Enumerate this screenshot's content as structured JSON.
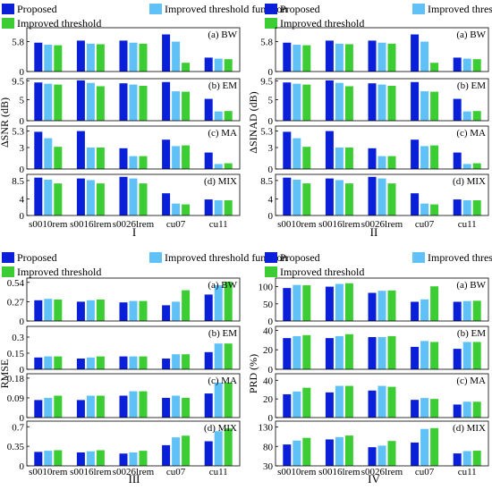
{
  "legend_labels": [
    "Proposed",
    "Improved threshold function",
    "Improved threshold"
  ],
  "colors": {
    "proposed": "#0a1fd8",
    "function": "#5fc1f5",
    "threshold": "#3ccd35",
    "cyan_box": "#2ee8e8",
    "frame": "#000000"
  },
  "chart_data": [
    {
      "type": "bar",
      "title": "I",
      "ylabel": "ΔSNR (dB)",
      "categories": [
        "s0010rem",
        "s0016lrem",
        "s0026lrem",
        "cu07",
        "cu11"
      ],
      "series_names": [
        "Proposed",
        "Improved threshold function",
        "Improved threshold"
      ],
      "panels": [
        {
          "label": "(a) BW",
          "ylim": [
            0,
            8.5
          ],
          "yticks": [
            "0",
            "5.8"
          ],
          "tick_values": [
            0,
            5.8
          ],
          "values": [
            [
              5.6,
              5.2,
              5.1
            ],
            [
              6.0,
              5.4,
              5.3
            ],
            [
              6.0,
              5.6,
              5.4
            ],
            [
              7.2,
              5.8,
              1.7
            ],
            [
              2.7,
              2.5,
              2.4
            ]
          ]
        },
        {
          "label": "(b) EM",
          "ylim": [
            0,
            10
          ],
          "yticks": [
            "0",
            "5",
            "9.5"
          ],
          "tick_values": [
            0,
            5,
            9.5
          ],
          "values": [
            [
              9.1,
              8.8,
              8.6
            ],
            [
              9.6,
              9.0,
              8.2
            ],
            [
              8.9,
              8.6,
              8.3
            ],
            [
              9.2,
              7.0,
              6.9
            ],
            [
              5.2,
              2.2,
              2.3
            ]
          ]
        },
        {
          "label": "(c) MA",
          "ylim": [
            0,
            6
          ],
          "yticks": [
            "0",
            "3",
            "5.3"
          ],
          "tick_values": [
            0,
            3,
            5.3
          ],
          "values": [
            [
              5.2,
              4.3,
              3.1
            ],
            [
              5.3,
              3.0,
              3.0
            ],
            [
              2.9,
              1.8,
              1.8
            ],
            [
              4.1,
              3.2,
              3.3
            ],
            [
              2.3,
              0.7,
              0.8
            ]
          ]
        },
        {
          "label": "(d) MIX",
          "ylim": [
            0,
            10
          ],
          "yticks": [
            "0",
            "4",
            "8.5"
          ],
          "tick_values": [
            0,
            4,
            8.5
          ],
          "values": [
            [
              9.2,
              8.7,
              7.8
            ],
            [
              9.0,
              8.6,
              7.8
            ],
            [
              9.4,
              9.0,
              7.8
            ],
            [
              5.4,
              2.9,
              2.7
            ],
            [
              3.9,
              3.7,
              3.7
            ]
          ]
        }
      ],
      "xticks": [
        "s0010rem",
        "s0016lrem",
        "s0026lrem",
        "cu07",
        "cu11"
      ]
    },
    {
      "type": "bar",
      "title": "II",
      "ylabel": "ΔSINAD (dB)",
      "categories": [
        "s0010rem",
        "s0016lrem",
        "s0026lrem",
        "cu07",
        "cu11"
      ],
      "series_names": [
        "Proposed",
        "Improved threshold function",
        "Improved threshold"
      ],
      "panels": [
        {
          "label": "(a) BW",
          "ylim": [
            0,
            8.5
          ],
          "yticks": [
            "0",
            "5.8"
          ],
          "tick_values": [
            0,
            5.8
          ],
          "values": [
            [
              5.6,
              5.2,
              5.1
            ],
            [
              6.0,
              5.4,
              5.3
            ],
            [
              6.0,
              5.6,
              5.4
            ],
            [
              7.2,
              5.8,
              1.7
            ],
            [
              2.7,
              2.5,
              2.4
            ]
          ]
        },
        {
          "label": "(b) EM",
          "ylim": [
            0,
            10
          ],
          "yticks": [
            "0",
            "5",
            "9.5"
          ],
          "tick_values": [
            0,
            5,
            9.5
          ],
          "values": [
            [
              9.1,
              8.8,
              8.6
            ],
            [
              9.6,
              9.0,
              8.2
            ],
            [
              8.9,
              8.6,
              8.3
            ],
            [
              9.2,
              7.0,
              6.9
            ],
            [
              5.2,
              2.2,
              2.3
            ]
          ]
        },
        {
          "label": "(c) MA",
          "ylim": [
            0,
            6
          ],
          "yticks": [
            "0",
            "3",
            "5.3"
          ],
          "tick_values": [
            0,
            3,
            5.3
          ],
          "values": [
            [
              5.2,
              4.3,
              3.1
            ],
            [
              5.3,
              3.0,
              3.0
            ],
            [
              2.9,
              1.8,
              1.8
            ],
            [
              4.1,
              3.2,
              3.3
            ],
            [
              2.3,
              0.7,
              0.8
            ]
          ]
        },
        {
          "label": "(d) MIX",
          "ylim": [
            0,
            10
          ],
          "yticks": [
            "0",
            "4",
            "8.5"
          ],
          "tick_values": [
            0,
            4,
            8.5
          ],
          "values": [
            [
              9.2,
              8.7,
              7.8
            ],
            [
              9.0,
              8.6,
              7.8
            ],
            [
              9.4,
              9.0,
              7.8
            ],
            [
              5.4,
              2.9,
              2.7
            ],
            [
              3.9,
              3.7,
              3.7
            ]
          ]
        }
      ],
      "xticks": [
        "s0010rem",
        "s0016lrem",
        "s0026lrem",
        "cu07",
        "cu11"
      ]
    },
    {
      "type": "bar",
      "title": "III",
      "ylabel": "RMSE",
      "categories": [
        "s0010rem",
        "s0016lrem",
        "s0026lrem",
        "cu07",
        "cu11"
      ],
      "series_names": [
        "Proposed",
        "Improved threshold function",
        "Improved threshold"
      ],
      "panels": [
        {
          "label": "(a) BW",
          "ylim": [
            0,
            0.6
          ],
          "yticks": [
            "0",
            "0.27",
            "0.54"
          ],
          "tick_values": [
            0,
            0.27,
            0.54
          ],
          "values": [
            [
              0.29,
              0.31,
              0.3
            ],
            [
              0.27,
              0.29,
              0.3
            ],
            [
              0.26,
              0.28,
              0.28
            ],
            [
              0.22,
              0.27,
              0.43
            ],
            [
              0.37,
              0.5,
              0.55
            ]
          ]
        },
        {
          "label": "(b) EM",
          "ylim": [
            0,
            0.4
          ],
          "yticks": [
            "0",
            "0.15",
            "0.3"
          ],
          "tick_values": [
            0,
            0.15,
            0.3
          ],
          "values": [
            [
              0.11,
              0.12,
              0.12
            ],
            [
              0.1,
              0.11,
              0.12
            ],
            [
              0.12,
              0.12,
              0.12
            ],
            [
              0.1,
              0.14,
              0.14
            ],
            [
              0.16,
              0.24,
              0.24
            ]
          ]
        },
        {
          "label": "(c) MA",
          "ylim": [
            0,
            0.2
          ],
          "yticks": [
            "0",
            "0.09",
            "0.18"
          ],
          "tick_values": [
            0,
            0.09,
            0.18
          ],
          "values": [
            [
              0.08,
              0.09,
              0.1
            ],
            [
              0.08,
              0.1,
              0.1
            ],
            [
              0.1,
              0.12,
              0.12
            ],
            [
              0.09,
              0.1,
              0.09
            ],
            [
              0.11,
              0.16,
              0.16
            ]
          ]
        },
        {
          "label": "(d) MIX",
          "ylim": [
            0,
            0.8
          ],
          "yticks": [
            "0",
            "0.35",
            "0.7"
          ],
          "tick_values": [
            0,
            0.35,
            0.7
          ],
          "values": [
            [
              0.25,
              0.27,
              0.28
            ],
            [
              0.24,
              0.26,
              0.28
            ],
            [
              0.22,
              0.24,
              0.27
            ],
            [
              0.37,
              0.51,
              0.54
            ],
            [
              0.44,
              0.62,
              0.67
            ]
          ]
        }
      ],
      "xticks": [
        "s0010rem",
        "s0016lrem",
        "s0026lrem",
        "cu07",
        "cu11"
      ]
    },
    {
      "type": "bar",
      "title": "IV",
      "ylabel": "PRD (%)",
      "categories": [
        "s0010rem",
        "s0016lrem",
        "s0026lrem",
        "cu07",
        "cu11"
      ],
      "series_names": [
        "Proposed",
        "Improved threshold function",
        "Improved threshold"
      ],
      "panels": [
        {
          "label": "(a) BW",
          "ylim": [
            0,
            125
          ],
          "yticks": [
            "0",
            "50",
            "100"
          ],
          "tick_values": [
            0,
            50,
            100
          ],
          "values": [
            [
              96,
              105,
              104
            ],
            [
              100,
              108,
              110
            ],
            [
              82,
              88,
              89
            ],
            [
              56,
              63,
              101
            ],
            [
              56,
              58,
              59
            ]
          ]
        },
        {
          "label": "(b) EM",
          "ylim": [
            0,
            44
          ],
          "yticks": [
            "0",
            "20",
            "40"
          ],
          "tick_values": [
            0,
            20,
            40
          ],
          "values": [
            [
              32,
              34,
              35
            ],
            [
              32,
              34,
              36
            ],
            [
              33,
              33,
              34
            ],
            [
              23,
              29,
              28
            ],
            [
              21,
              28,
              28
            ]
          ]
        },
        {
          "label": "(c) MA",
          "ylim": [
            0,
            47
          ],
          "yticks": [
            "0",
            "20",
            "40"
          ],
          "tick_values": [
            0,
            20,
            40
          ],
          "values": [
            [
              25,
              28,
              32
            ],
            [
              27,
              34,
              34
            ],
            [
              29,
              34,
              33
            ],
            [
              19,
              21,
              20
            ],
            [
              14,
              17,
              17
            ]
          ]
        },
        {
          "label": "(d) MIX",
          "ylim": [
            30,
            145
          ],
          "yticks": [
            "30",
            "80",
            "130"
          ],
          "tick_values": [
            30,
            80,
            130
          ],
          "values": [
            [
              85,
              95,
              102
            ],
            [
              98,
              104,
              108
            ],
            [
              78,
              82,
              94
            ],
            [
              90,
              125,
              127
            ],
            [
              62,
              68,
              69
            ]
          ]
        }
      ],
      "xticks": [
        "s0010rem",
        "s0016lrem",
        "s0026lrem",
        "cu07",
        "cu11"
      ]
    }
  ]
}
